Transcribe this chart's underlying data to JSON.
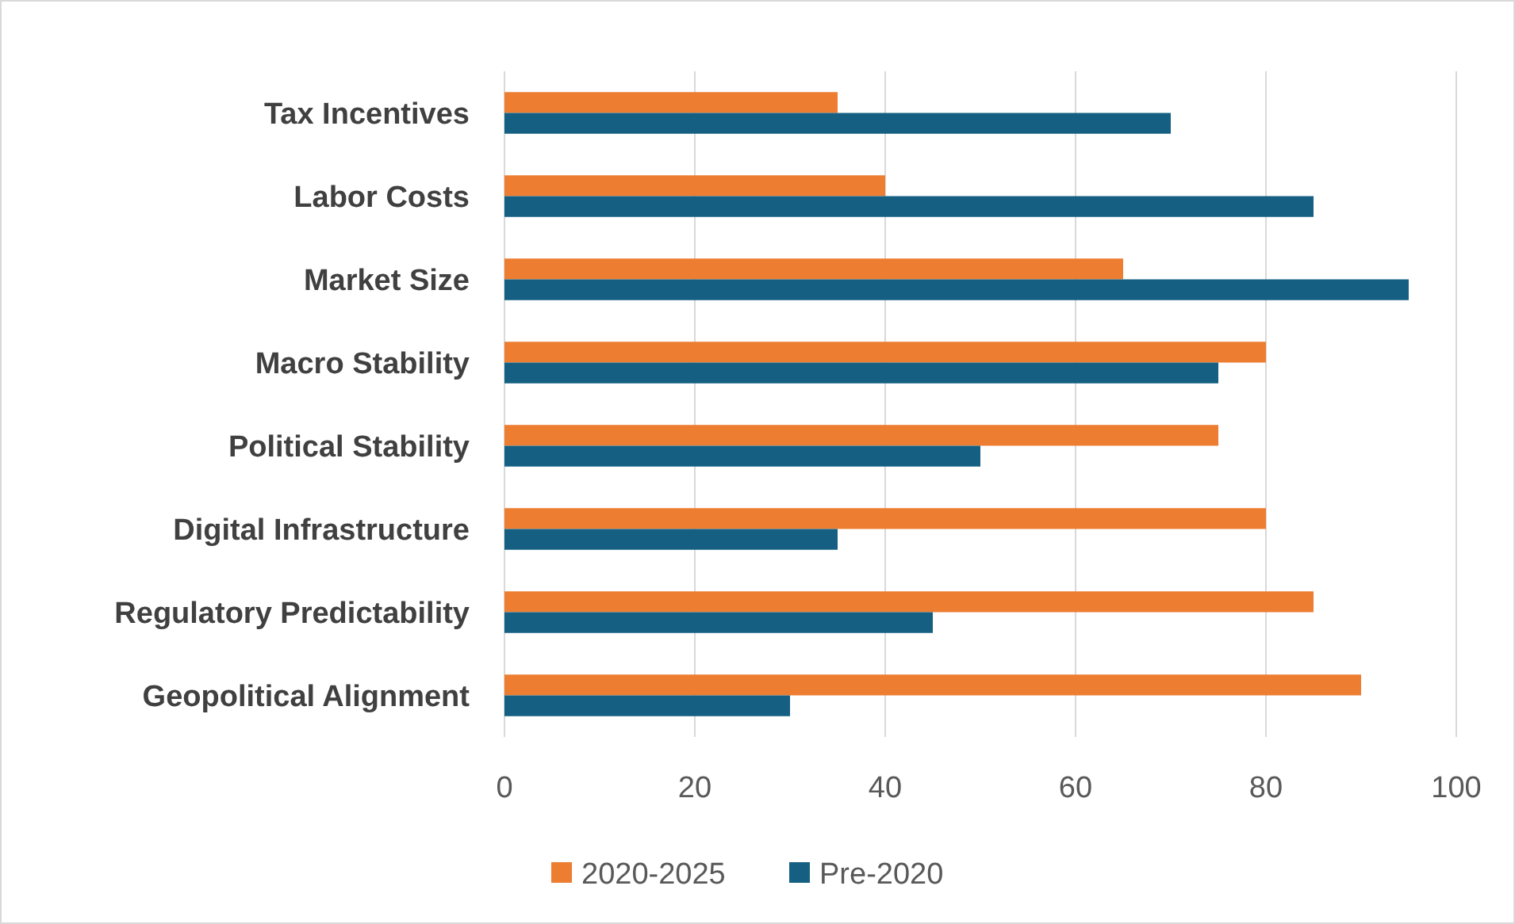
{
  "chart_data": {
    "type": "bar",
    "orientation": "horizontal",
    "categories": [
      "Tax Incentives",
      "Labor Costs",
      "Market Size",
      "Macro Stability",
      "Political Stability",
      "Digital Infrastructure",
      "Regulatory Predictability",
      "Geopolitical Alignment"
    ],
    "series": [
      {
        "name": "2020-2025",
        "color": "#ed7d31",
        "values": [
          35,
          40,
          65,
          80,
          75,
          80,
          85,
          90
        ]
      },
      {
        "name": "Pre-2020",
        "color": "#156082",
        "values": [
          70,
          85,
          95,
          75,
          50,
          35,
          45,
          30
        ]
      }
    ],
    "xlim": [
      0,
      100
    ],
    "xticks": [
      0,
      20,
      40,
      60,
      80,
      100
    ],
    "grid": "x",
    "legend": "bottom"
  }
}
